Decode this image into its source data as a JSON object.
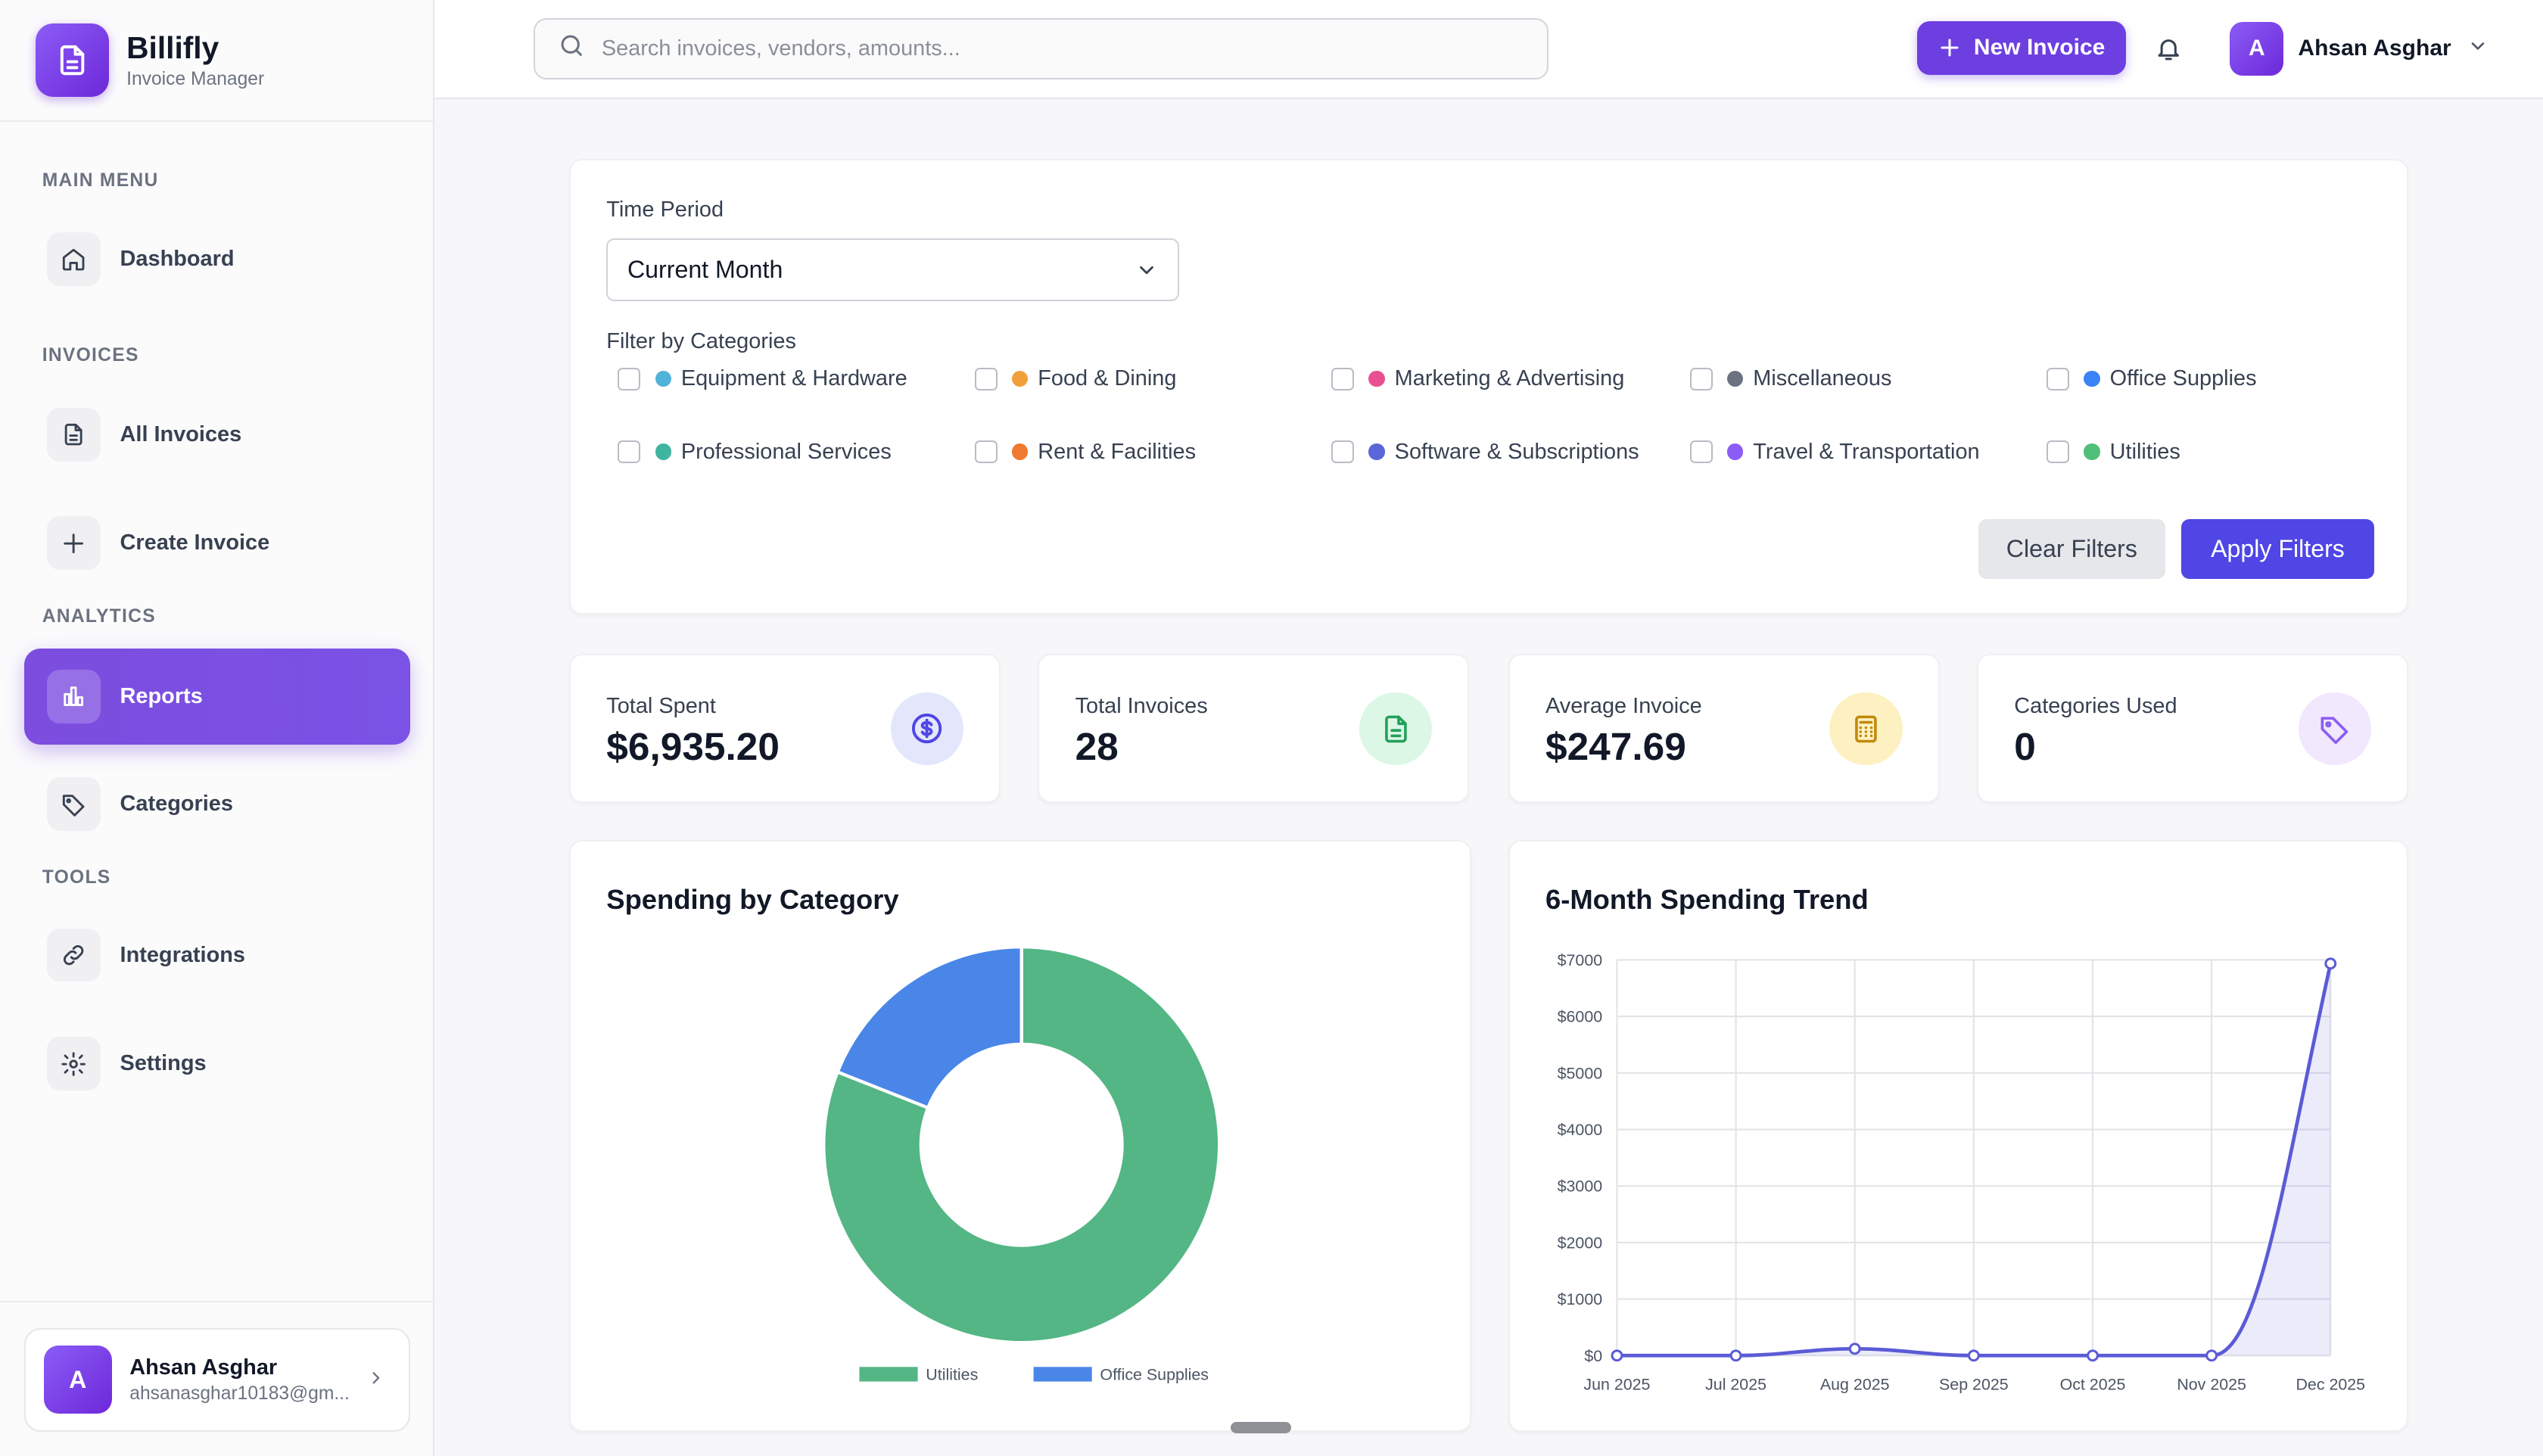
{
  "brand": {
    "name": "Billifly",
    "subtitle": "Invoice Manager"
  },
  "sidebar": {
    "sections": [
      {
        "label": "MAIN MENU"
      },
      {
        "label": "INVOICES"
      },
      {
        "label": "ANALYTICS"
      },
      {
        "label": "TOOLS"
      }
    ],
    "items": [
      {
        "label": "Dashboard",
        "icon": "home-icon"
      },
      {
        "label": "All Invoices",
        "icon": "document-icon"
      },
      {
        "label": "Create Invoice",
        "icon": "plus-icon"
      },
      {
        "label": "Reports",
        "icon": "bar-chart-icon",
        "active": true
      },
      {
        "label": "Categories",
        "icon": "tag-icon"
      },
      {
        "label": "Integrations",
        "icon": "link-icon"
      },
      {
        "label": "Settings",
        "icon": "gear-icon"
      }
    ],
    "user": {
      "initial": "A",
      "name": "Ahsan Asghar",
      "email": "ahsanasghar10183@gm..."
    }
  },
  "topbar": {
    "search_placeholder": "Search invoices, vendors, amounts...",
    "new_invoice_label": "New Invoice",
    "user": {
      "initial": "A",
      "name": "Ahsan Asghar"
    }
  },
  "filters": {
    "time_period_label": "Time Period",
    "time_period_value": "Current Month",
    "categories_label": "Filter by Categories",
    "categories": [
      {
        "name": "Equipment & Hardware",
        "color": "#4fb3d9"
      },
      {
        "name": "Food & Dining",
        "color": "#f0a03a"
      },
      {
        "name": "Marketing & Advertising",
        "color": "#e8508f"
      },
      {
        "name": "Miscellaneous",
        "color": "#6b7280"
      },
      {
        "name": "Office Supplies",
        "color": "#3b82f6"
      },
      {
        "name": "Professional Services",
        "color": "#3fb5a0"
      },
      {
        "name": "Rent & Facilities",
        "color": "#ef7a2f"
      },
      {
        "name": "Software & Subscriptions",
        "color": "#5a67d8"
      },
      {
        "name": "Travel & Transportation",
        "color": "#8b5cf6"
      },
      {
        "name": "Utilities",
        "color": "#4fbf7a"
      }
    ],
    "clear_label": "Clear Filters",
    "apply_label": "Apply Filters"
  },
  "stats": [
    {
      "label": "Total Spent",
      "value": "$6,935.20",
      "icon": "dollar-icon",
      "bg": "#e4e7fb",
      "fg": "#4f46e5"
    },
    {
      "label": "Total Invoices",
      "value": "28",
      "icon": "document-icon",
      "bg": "#dcf7e6",
      "fg": "#22a05a"
    },
    {
      "label": "Average Invoice",
      "value": "$247.69",
      "icon": "calculator-icon",
      "bg": "#fdf1c2",
      "fg": "#c08a0a"
    },
    {
      "label": "Categories Used",
      "value": "0",
      "icon": "tag-icon",
      "bg": "#f1e8fd",
      "fg": "#8b5cf6"
    }
  ],
  "chart_data": [
    {
      "type": "pie",
      "title": "Spending by Category",
      "variant": "doughnut",
      "categories": [
        "Utilities",
        "Office Supplies"
      ],
      "values": [
        81,
        19
      ],
      "colors": [
        "#53b684",
        "#4a86e8"
      ],
      "legend_position": "bottom"
    },
    {
      "type": "area",
      "title": "6-Month Spending Trend",
      "categories": [
        "Jun 2025",
        "Jul 2025",
        "Aug 2025",
        "Sep 2025",
        "Oct 2025",
        "Nov 2025",
        "Dec 2025"
      ],
      "values": [
        0,
        0,
        120,
        0,
        0,
        0,
        6935.2
      ],
      "ylim": [
        0,
        7000
      ],
      "yticks": [
        "$0",
        "$1000",
        "$2000",
        "$3000",
        "$4000",
        "$5000",
        "$6000",
        "$7000"
      ],
      "ytick_values": [
        0,
        1000,
        2000,
        3000,
        4000,
        5000,
        6000,
        7000
      ],
      "line_color": "#5b5bd6",
      "grid": true
    }
  ]
}
